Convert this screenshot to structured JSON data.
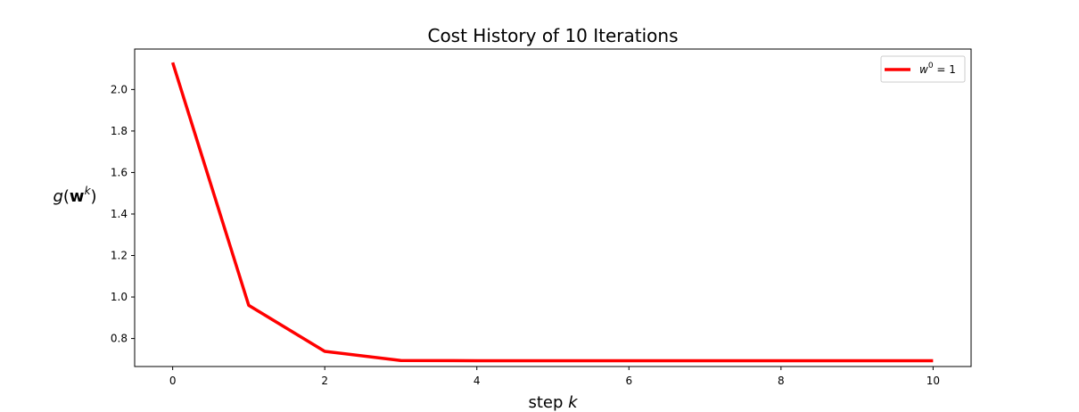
{
  "chart_data": {
    "type": "line",
    "title": "Cost History of 10 Iterations",
    "xlabel": {
      "base": "step ",
      "var": "k"
    },
    "ylabel": {
      "g": "g",
      "open": "(",
      "w": "w",
      "sup": "k",
      "close": ")"
    },
    "xlim": [
      -0.5,
      10.5
    ],
    "ylim": [
      0.665,
      2.195
    ],
    "xticks": [
      0,
      2,
      4,
      6,
      8,
      10
    ],
    "xtick_labels": [
      "0",
      "2",
      "4",
      "6",
      "8",
      "10"
    ],
    "yticks": [
      0.8,
      1.0,
      1.2,
      1.4,
      1.6,
      1.8,
      2.0
    ],
    "ytick_labels": [
      "0.8",
      "1.0",
      "1.2",
      "1.4",
      "1.6",
      "1.8",
      "2.0"
    ],
    "grid": false,
    "legend_position": "top-right",
    "series": [
      {
        "name": {
          "w": "w",
          "sup": "0",
          "rest": " = 1"
        },
        "color": "#ff0000",
        "x": [
          0,
          1,
          2,
          3,
          4,
          5,
          6,
          7,
          8,
          9,
          10
        ],
        "y": [
          2.13,
          0.96,
          0.738,
          0.694,
          0.693,
          0.693,
          0.693,
          0.693,
          0.693,
          0.693,
          0.693
        ]
      }
    ]
  }
}
